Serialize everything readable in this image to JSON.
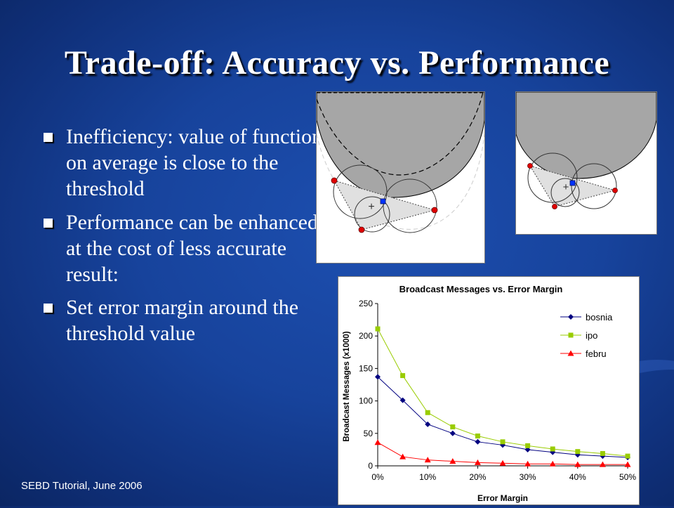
{
  "slide": {
    "title": "Trade-off: Accuracy vs. Performance",
    "bullets": [
      "Inefficiency: value of function on average is close to the threshold",
      "Performance can be enhanced at the cost of less accurate result:",
      "Set error margin around the threshold value"
    ],
    "footer": "SEBD Tutorial, June 2006"
  },
  "chart_data": {
    "type": "line",
    "title": "Broadcast Messages vs. Error Margin",
    "xlabel": "Error Margin",
    "ylabel": "Broadcast Messages (x1000)",
    "x": [
      0,
      5,
      10,
      15,
      20,
      25,
      30,
      35,
      40,
      45,
      50
    ],
    "xticks": [
      "0%",
      "10%",
      "20%",
      "30%",
      "40%",
      "50%"
    ],
    "xlim": [
      0,
      50
    ],
    "ylim": [
      0,
      250
    ],
    "yticks": [
      "0",
      "50",
      "100",
      "150",
      "200",
      "250"
    ],
    "legend": "top-right",
    "grid": false,
    "series": [
      {
        "name": "bosnia",
        "color": "#000080",
        "marker": "diamond",
        "values": [
          137,
          101,
          64,
          50,
          37,
          32,
          25,
          21,
          17,
          15,
          13
        ]
      },
      {
        "name": "ipo",
        "color": "#99cc00",
        "marker": "square",
        "values": [
          211,
          139,
          82,
          60,
          46,
          37,
          31,
          26,
          22,
          19,
          15
        ]
      },
      {
        "name": "febru",
        "color": "#ff0000",
        "marker": "triangle",
        "values": [
          36,
          14,
          9,
          7,
          5,
          4,
          3,
          3,
          2,
          2,
          2
        ]
      }
    ]
  }
}
